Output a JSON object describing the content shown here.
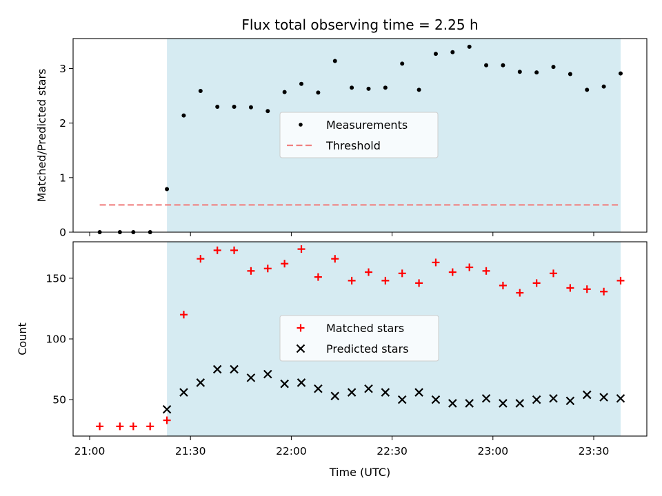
{
  "chart_data": {
    "type": "scatter",
    "title": "Flux total observing time = 2.25 h",
    "xlabel": "Time (UTC)",
    "x_ticks": [
      "21:00",
      "21:30",
      "22:00",
      "22:30",
      "23:00",
      "23:30"
    ],
    "shaded_interval": [
      "21:23",
      "23:38"
    ],
    "shade_color": "#add8e6",
    "panels": [
      {
        "name": "ratio",
        "ylabel": "Matched/Predicted stars",
        "ylim": [
          0,
          3.55
        ],
        "y_ticks": [
          0,
          1,
          2,
          3
        ],
        "legend": {
          "position": "center",
          "entries": [
            "Measurements",
            "Threshold"
          ]
        },
        "series": [
          {
            "name": "Measurements",
            "marker": "dot",
            "color": "#000000",
            "x": [
              "21:03",
              "21:09",
              "21:13",
              "21:18",
              "21:23",
              "21:28",
              "21:33",
              "21:38",
              "21:43",
              "21:48",
              "21:53",
              "21:58",
              "22:03",
              "22:08",
              "22:13",
              "22:18",
              "22:23",
              "22:28",
              "22:33",
              "22:38",
              "22:43",
              "22:48",
              "22:53",
              "22:58",
              "23:03",
              "23:08",
              "23:13",
              "23:18",
              "23:23",
              "23:28",
              "23:33",
              "23:38"
            ],
            "y": [
              0,
              0,
              0,
              0,
              0.79,
              2.14,
              2.59,
              2.3,
              2.3,
              2.29,
              2.22,
              2.57,
              2.72,
              2.56,
              3.14,
              2.65,
              2.63,
              2.65,
              3.09,
              2.61,
              3.27,
              3.3,
              3.4,
              3.06,
              3.06,
              2.94,
              2.93,
              3.03,
              2.9,
              2.61,
              2.67,
              2.91
            ]
          },
          {
            "name": "Threshold",
            "style": "dashed",
            "color": "#f08080",
            "x": [
              "21:03",
              "23:38"
            ],
            "y": [
              0.5,
              0.5
            ]
          }
        ]
      },
      {
        "name": "counts",
        "ylabel": "Count",
        "ylim": [
          20,
          180
        ],
        "y_ticks": [
          50,
          100,
          150
        ],
        "legend": {
          "position": "center",
          "entries": [
            "Matched stars",
            "Predicted stars"
          ]
        },
        "series": [
          {
            "name": "Matched stars",
            "marker": "plus",
            "color": "#ff0000",
            "x": [
              "21:03",
              "21:09",
              "21:13",
              "21:18",
              "21:23",
              "21:28",
              "21:33",
              "21:38",
              "21:43",
              "21:48",
              "21:53",
              "21:58",
              "22:03",
              "22:08",
              "22:13",
              "22:18",
              "22:23",
              "22:28",
              "22:33",
              "22:38",
              "22:43",
              "22:48",
              "22:53",
              "22:58",
              "23:03",
              "23:08",
              "23:13",
              "23:18",
              "23:23",
              "23:28",
              "23:33",
              "23:38"
            ],
            "y": [
              28,
              28,
              28,
              28,
              33,
              120,
              166,
              173,
              173,
              156,
              158,
              162,
              174,
              151,
              166,
              148,
              155,
              148,
              154,
              146,
              163,
              155,
              159,
              156,
              144,
              138,
              146,
              154,
              142,
              141,
              139,
              148
            ]
          },
          {
            "name": "Predicted stars",
            "marker": "x",
            "color": "#000000",
            "x": [
              "21:03",
              "21:09",
              "21:13",
              "21:18",
              "21:23",
              "21:28",
              "21:33",
              "21:38",
              "21:43",
              "21:48",
              "21:53",
              "21:58",
              "22:03",
              "22:08",
              "22:13",
              "22:18",
              "22:23",
              "22:28",
              "22:33",
              "22:38",
              "22:43",
              "22:48",
              "22:53",
              "22:58",
              "23:03",
              "23:08",
              "23:13",
              "23:18",
              "23:23",
              "23:28",
              "23:33",
              "23:38"
            ],
            "y": [
              null,
              null,
              null,
              null,
              42,
              56,
              64,
              75,
              75,
              68,
              71,
              63,
              64,
              59,
              53,
              56,
              59,
              56,
              50,
              56,
              50,
              47,
              47,
              51,
              47,
              47,
              50,
              51,
              49,
              54,
              52,
              51
            ]
          }
        ]
      }
    ]
  }
}
